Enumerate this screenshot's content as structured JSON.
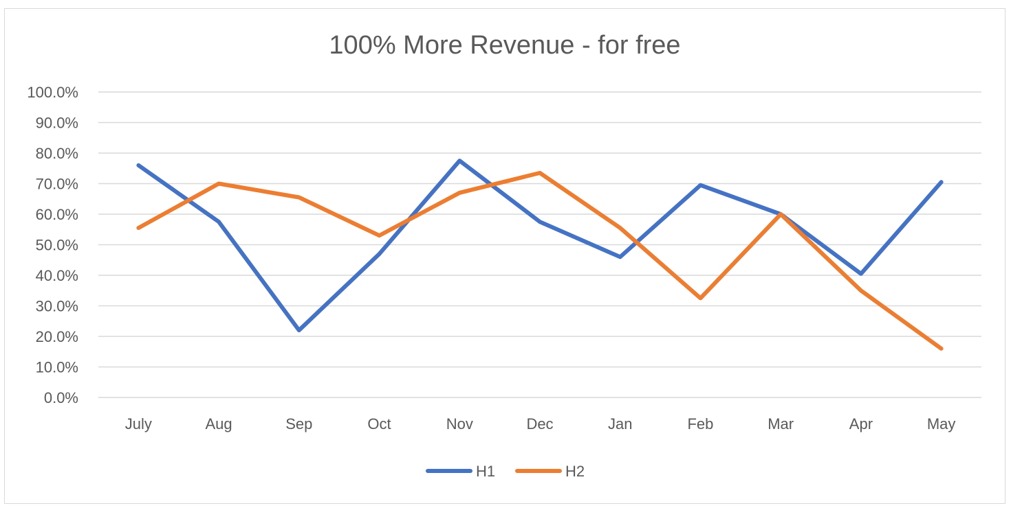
{
  "chart_data": {
    "type": "line",
    "title": "100% More Revenue - for free",
    "categories": [
      "July",
      "Aug",
      "Sep",
      "Oct",
      "Nov",
      "Dec",
      "Jan",
      "Feb",
      "Mar",
      "Apr",
      "May"
    ],
    "yticks": [
      "0.0%",
      "10.0%",
      "20.0%",
      "30.0%",
      "40.0%",
      "50.0%",
      "60.0%",
      "70.0%",
      "80.0%",
      "90.0%",
      "100.0%"
    ],
    "ylim": [
      0,
      100
    ],
    "grid": true,
    "legend_position": "bottom",
    "series": [
      {
        "name": "H1",
        "color": "#4472C4",
        "values": [
          76,
          57.5,
          22,
          47,
          77.5,
          57.5,
          46,
          69.5,
          60,
          40.5,
          70.5
        ]
      },
      {
        "name": "H2",
        "color": "#ED7D31",
        "values": [
          55.5,
          70,
          65.5,
          53,
          67,
          73.5,
          55.5,
          32.5,
          60,
          35,
          16
        ]
      }
    ]
  }
}
